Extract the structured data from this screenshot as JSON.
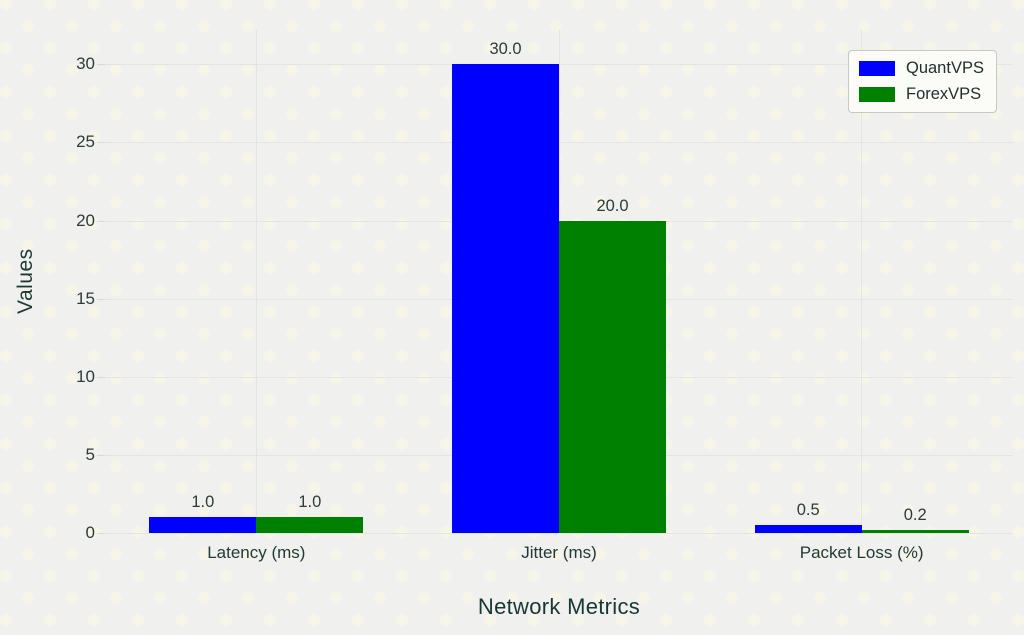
{
  "chart_data": {
    "type": "bar",
    "title": "Network Metrics",
    "ylabel": "Values",
    "xlabel": "",
    "categories": [
      "Latency (ms)",
      "Jitter (ms)",
      "Packet Loss (%)"
    ],
    "series": [
      {
        "name": "QuantVPS",
        "color": "#0000ff",
        "values": [
          1.0,
          30.0,
          0.5
        ],
        "labels": [
          "1.0",
          "30.0",
          "0.5"
        ]
      },
      {
        "name": "ForexVPS",
        "color": "#008000",
        "values": [
          1.0,
          20.0,
          0.2
        ],
        "labels": [
          "1.0",
          "20.0",
          "0.2"
        ]
      }
    ],
    "yticks": [
      0,
      5,
      10,
      15,
      20,
      25,
      30
    ],
    "ytick_labels": [
      "0",
      "5",
      "10",
      "15",
      "20",
      "25",
      "30"
    ],
    "ylim": [
      0,
      32.2
    ],
    "grid": true,
    "legend_position": "upper right",
    "legend_entries": [
      "QuantVPS",
      "ForexVPS"
    ]
  },
  "style": {
    "background": "#f0f1ee",
    "dot_color": "#f6f5e8",
    "text_color": "#203a37",
    "grid_color": "#e3e5e0",
    "tick_color": "#dcd9d3",
    "legend_bg": "#fbfbf8",
    "legend_border": "#c9c9c1"
  }
}
